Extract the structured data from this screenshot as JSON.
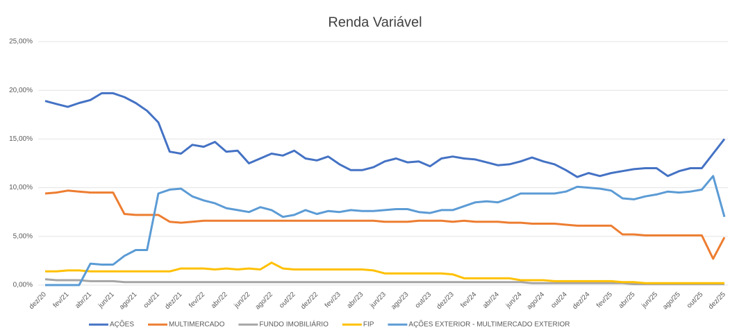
{
  "chart_data": {
    "type": "line",
    "title": "Renda Variável",
    "categories": [
      "dez/20",
      null,
      "fev/21",
      null,
      "abr/21",
      null,
      "jun/21",
      null,
      "ago/21",
      null,
      "out/21",
      null,
      "dez/21",
      null,
      "fev/22",
      null,
      "abr/22",
      null,
      "jun/22",
      null,
      "ago/22",
      null,
      "out/22",
      null,
      "dez/22",
      null,
      "fev/23",
      null,
      "abr/23",
      null,
      "jun/23",
      null,
      "ago/23",
      null,
      "out/23",
      null,
      "dez/23",
      null,
      "fev/24",
      null,
      "abr/24",
      null,
      "jun/24",
      null,
      "ago/24",
      null,
      "out/24",
      null,
      "dez/24",
      null,
      "fev/25",
      null,
      "abr/25",
      null,
      "jun/25",
      null,
      "ago/25",
      null,
      "out/25",
      null,
      "dez/25"
    ],
    "series": [
      {
        "name": "AÇÕES",
        "color": "#4472c4",
        "values": [
          18.9,
          18.6,
          18.3,
          18.7,
          19.0,
          19.7,
          19.7,
          19.3,
          18.7,
          17.9,
          16.7,
          13.7,
          13.5,
          14.4,
          14.2,
          14.7,
          13.7,
          13.8,
          12.5,
          13.0,
          13.5,
          13.3,
          13.8,
          13.0,
          12.8,
          13.2,
          12.4,
          11.8,
          11.8,
          12.1,
          12.7,
          13.0,
          12.6,
          12.7,
          12.2,
          13.0,
          13.2,
          13.0,
          12.9,
          12.6,
          12.3,
          12.4,
          12.7,
          13.1,
          12.7,
          12.4,
          11.8,
          11.1,
          11.5,
          11.2,
          11.5,
          11.7,
          11.9,
          12.0,
          12.0,
          11.2,
          11.7,
          12.0,
          12.0,
          13.5,
          15.0
        ]
      },
      {
        "name": "MULTIMERCADO",
        "color": "#ed7d31",
        "values": [
          9.4,
          9.5,
          9.7,
          9.6,
          9.5,
          9.5,
          9.5,
          7.3,
          7.2,
          7.2,
          7.2,
          6.5,
          6.4,
          6.5,
          6.6,
          6.6,
          6.6,
          6.6,
          6.6,
          6.6,
          6.6,
          6.6,
          6.6,
          6.6,
          6.6,
          6.6,
          6.6,
          6.6,
          6.6,
          6.6,
          6.5,
          6.5,
          6.5,
          6.6,
          6.6,
          6.6,
          6.5,
          6.6,
          6.5,
          6.5,
          6.5,
          6.4,
          6.4,
          6.3,
          6.3,
          6.3,
          6.2,
          6.1,
          6.1,
          6.1,
          6.1,
          5.2,
          5.2,
          5.1,
          5.1,
          5.1,
          5.1,
          5.1,
          5.1,
          2.7,
          4.9
        ]
      },
      {
        "name": "FUNDO IMOBILIÁRIO",
        "color": "#a5a5a5",
        "values": [
          0.6,
          0.5,
          0.5,
          0.5,
          0.4,
          0.4,
          0.4,
          0.3,
          0.3,
          0.3,
          0.3,
          0.3,
          0.3,
          0.3,
          0.3,
          0.3,
          0.3,
          0.3,
          0.3,
          0.3,
          0.3,
          0.3,
          0.3,
          0.3,
          0.3,
          0.3,
          0.3,
          0.3,
          0.3,
          0.3,
          0.3,
          0.3,
          0.3,
          0.3,
          0.3,
          0.3,
          0.3,
          0.3,
          0.3,
          0.3,
          0.3,
          0.3,
          0.3,
          0.2,
          0.2,
          0.2,
          0.2,
          0.2,
          0.2,
          0.2,
          0.2,
          0.2,
          0.1,
          0.1,
          0.1,
          0.1,
          0.1,
          0.1,
          0.1,
          0.1,
          0.1
        ]
      },
      {
        "name": "FIP",
        "color": "#ffc000",
        "values": [
          1.4,
          1.4,
          1.5,
          1.5,
          1.4,
          1.4,
          1.4,
          1.4,
          1.4,
          1.4,
          1.4,
          1.4,
          1.7,
          1.7,
          1.7,
          1.6,
          1.7,
          1.6,
          1.7,
          1.6,
          2.3,
          1.7,
          1.6,
          1.6,
          1.6,
          1.6,
          1.6,
          1.6,
          1.6,
          1.5,
          1.2,
          1.2,
          1.2,
          1.2,
          1.2,
          1.2,
          1.1,
          0.7,
          0.7,
          0.7,
          0.7,
          0.7,
          0.5,
          0.5,
          0.5,
          0.4,
          0.4,
          0.4,
          0.4,
          0.4,
          0.4,
          0.3,
          0.3,
          0.2,
          0.2,
          0.2,
          0.2,
          0.2,
          0.2,
          0.2,
          0.2
        ]
      },
      {
        "name": "AÇÕES EXTERIOR - MULTIMERCADO EXTERIOR",
        "color": "#5b9bd5",
        "values": [
          0,
          0,
          0,
          0,
          2.2,
          2.1,
          2.1,
          3.0,
          3.6,
          3.6,
          9.4,
          9.8,
          9.9,
          9.1,
          8.7,
          8.4,
          7.9,
          7.7,
          7.5,
          8.0,
          7.7,
          7.0,
          7.2,
          7.7,
          7.3,
          7.6,
          7.5,
          7.7,
          7.6,
          7.6,
          7.7,
          7.8,
          7.8,
          7.5,
          7.4,
          7.7,
          7.7,
          8.1,
          8.5,
          8.6,
          8.5,
          8.9,
          9.4,
          9.4,
          9.4,
          9.4,
          9.6,
          10.1,
          10.0,
          9.9,
          9.7,
          8.9,
          8.8,
          9.1,
          9.3,
          9.6,
          9.5,
          9.6,
          9.8,
          11.2,
          7.0
        ]
      }
    ],
    "ylim": [
      0,
      25
    ],
    "yticks": [
      {
        "value": 0,
        "label": "0,00%"
      },
      {
        "value": 5,
        "label": "5,00%"
      },
      {
        "value": 10,
        "label": "10,00%"
      },
      {
        "value": 15,
        "label": "15,00%"
      },
      {
        "value": 20,
        "label": "20,00%"
      },
      {
        "value": 25,
        "label": "25,00%"
      }
    ],
    "grid": true,
    "legend": "bottom"
  }
}
